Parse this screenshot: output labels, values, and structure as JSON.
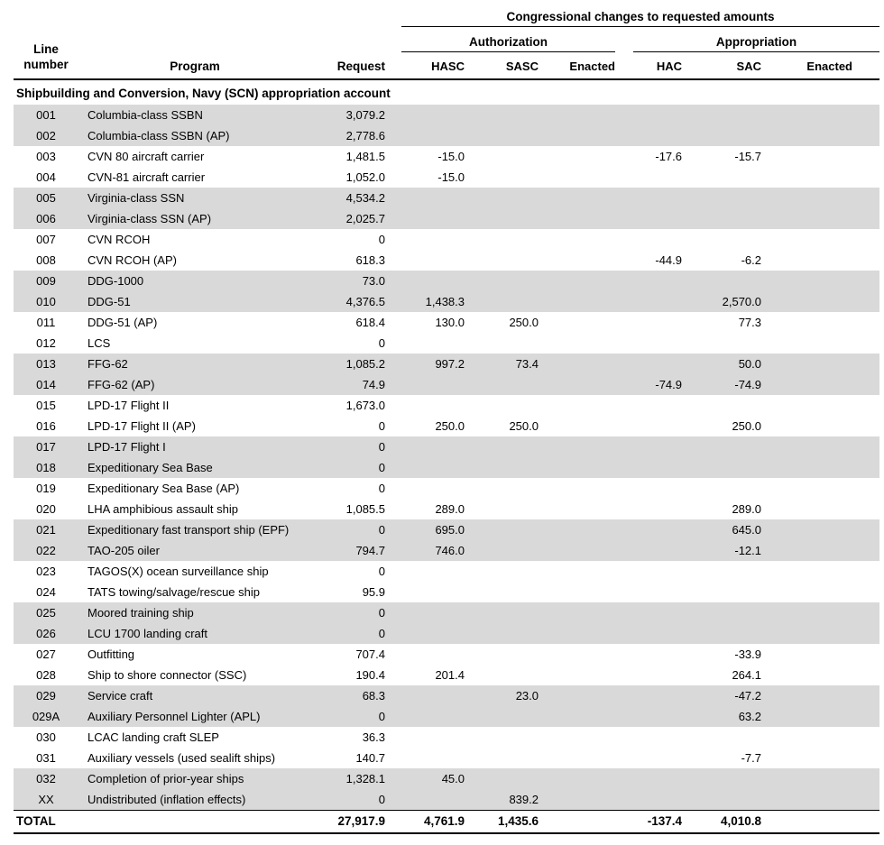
{
  "header": {
    "spanning_title": "Congressional changes to requested amounts",
    "group_authorization": "Authorization",
    "group_appropriation": "Appropriation",
    "col_line_top": "Line",
    "col_line_bottom": "number",
    "col_program": "Program",
    "col_request": "Request",
    "col_hasc": "HASC",
    "col_sasc": "SASC",
    "col_enacted_auth": "Enacted",
    "col_hac": "HAC",
    "col_sac": "SAC",
    "col_enacted_approp": "Enacted"
  },
  "section_title": "Shipbuilding and Conversion, Navy (SCN) appropriation account",
  "rows": [
    {
      "line": "001",
      "program": "Columbia-class SSBN",
      "request": "3,079.2",
      "hasc": "",
      "sasc": "",
      "enacted_auth": "",
      "hac": "",
      "sac": "",
      "enacted_approp": "",
      "shaded": true
    },
    {
      "line": "002",
      "program": "Columbia-class SSBN (AP)",
      "request": "2,778.6",
      "hasc": "",
      "sasc": "",
      "enacted_auth": "",
      "hac": "",
      "sac": "",
      "enacted_approp": "",
      "shaded": true
    },
    {
      "line": "003",
      "program": "CVN 80 aircraft carrier",
      "request": "1,481.5",
      "hasc": "-15.0",
      "sasc": "",
      "enacted_auth": "",
      "hac": "-17.6",
      "sac": "-15.7",
      "enacted_approp": "",
      "shaded": false
    },
    {
      "line": "004",
      "program": "CVN-81 aircraft carrier",
      "request": "1,052.0",
      "hasc": "-15.0",
      "sasc": "",
      "enacted_auth": "",
      "hac": "",
      "sac": "",
      "enacted_approp": "",
      "shaded": false
    },
    {
      "line": "005",
      "program": "Virginia-class SSN",
      "request": "4,534.2",
      "hasc": "",
      "sasc": "",
      "enacted_auth": "",
      "hac": "",
      "sac": "",
      "enacted_approp": "",
      "shaded": true
    },
    {
      "line": "006",
      "program": "Virginia-class SSN (AP)",
      "request": "2,025.7",
      "hasc": "",
      "sasc": "",
      "enacted_auth": "",
      "hac": "",
      "sac": "",
      "enacted_approp": "",
      "shaded": true
    },
    {
      "line": "007",
      "program": "CVN RCOH",
      "request": "0",
      "hasc": "",
      "sasc": "",
      "enacted_auth": "",
      "hac": "",
      "sac": "",
      "enacted_approp": "",
      "shaded": false
    },
    {
      "line": "008",
      "program": "CVN RCOH (AP)",
      "request": "618.3",
      "hasc": "",
      "sasc": "",
      "enacted_auth": "",
      "hac": "-44.9",
      "sac": "-6.2",
      "enacted_approp": "",
      "shaded": false
    },
    {
      "line": "009",
      "program": "DDG-1000",
      "request": "73.0",
      "hasc": "",
      "sasc": "",
      "enacted_auth": "",
      "hac": "",
      "sac": "",
      "enacted_approp": "",
      "shaded": true
    },
    {
      "line": "010",
      "program": "DDG-51",
      "request": "4,376.5",
      "hasc": "1,438.3",
      "sasc": "",
      "enacted_auth": "",
      "hac": "",
      "sac": "2,570.0",
      "enacted_approp": "",
      "shaded": true
    },
    {
      "line": "011",
      "program": "DDG-51 (AP)",
      "request": "618.4",
      "hasc": "130.0",
      "sasc": "250.0",
      "enacted_auth": "",
      "hac": "",
      "sac": "77.3",
      "enacted_approp": "",
      "shaded": false
    },
    {
      "line": "012",
      "program": "LCS",
      "request": "0",
      "hasc": "",
      "sasc": "",
      "enacted_auth": "",
      "hac": "",
      "sac": "",
      "enacted_approp": "",
      "shaded": false
    },
    {
      "line": "013",
      "program": "FFG-62",
      "request": "1,085.2",
      "hasc": "997.2",
      "sasc": "73.4",
      "enacted_auth": "",
      "hac": "",
      "sac": "50.0",
      "enacted_approp": "",
      "shaded": true
    },
    {
      "line": "014",
      "program": "FFG-62 (AP)",
      "request": "74.9",
      "hasc": "",
      "sasc": "",
      "enacted_auth": "",
      "hac": "-74.9",
      "sac": "-74.9",
      "enacted_approp": "",
      "shaded": true
    },
    {
      "line": "015",
      "program": "LPD-17 Flight II",
      "request": "1,673.0",
      "hasc": "",
      "sasc": "",
      "enacted_auth": "",
      "hac": "",
      "sac": "",
      "enacted_approp": "",
      "shaded": false
    },
    {
      "line": "016",
      "program": "LPD-17 Flight II (AP)",
      "request": "0",
      "hasc": "250.0",
      "sasc": "250.0",
      "enacted_auth": "",
      "hac": "",
      "sac": "250.0",
      "enacted_approp": "",
      "shaded": false
    },
    {
      "line": "017",
      "program": "LPD-17 Flight I",
      "request": "0",
      "hasc": "",
      "sasc": "",
      "enacted_auth": "",
      "hac": "",
      "sac": "",
      "enacted_approp": "",
      "shaded": true
    },
    {
      "line": "018",
      "program": "Expeditionary Sea Base",
      "request": "0",
      "hasc": "",
      "sasc": "",
      "enacted_auth": "",
      "hac": "",
      "sac": "",
      "enacted_approp": "",
      "shaded": true
    },
    {
      "line": "019",
      "program": "Expeditionary Sea Base (AP)",
      "request": "0",
      "hasc": "",
      "sasc": "",
      "enacted_auth": "",
      "hac": "",
      "sac": "",
      "enacted_approp": "",
      "shaded": false
    },
    {
      "line": "020",
      "program": "LHA amphibious assault ship",
      "request": "1,085.5",
      "hasc": "289.0",
      "sasc": "",
      "enacted_auth": "",
      "hac": "",
      "sac": "289.0",
      "enacted_approp": "",
      "shaded": false
    },
    {
      "line": "021",
      "program": "Expeditionary fast transport ship (EPF)",
      "request": "0",
      "hasc": "695.0",
      "sasc": "",
      "enacted_auth": "",
      "hac": "",
      "sac": "645.0",
      "enacted_approp": "",
      "shaded": true
    },
    {
      "line": "022",
      "program": "TAO-205 oiler",
      "request": "794.7",
      "hasc": "746.0",
      "sasc": "",
      "enacted_auth": "",
      "hac": "",
      "sac": "-12.1",
      "enacted_approp": "",
      "shaded": true
    },
    {
      "line": "023",
      "program": "TAGOS(X) ocean surveillance ship",
      "request": "0",
      "hasc": "",
      "sasc": "",
      "enacted_auth": "",
      "hac": "",
      "sac": "",
      "enacted_approp": "",
      "shaded": false
    },
    {
      "line": "024",
      "program": "TATS towing/salvage/rescue ship",
      "request": "95.9",
      "hasc": "",
      "sasc": "",
      "enacted_auth": "",
      "hac": "",
      "sac": "",
      "enacted_approp": "",
      "shaded": false
    },
    {
      "line": "025",
      "program": "Moored training ship",
      "request": "0",
      "hasc": "",
      "sasc": "",
      "enacted_auth": "",
      "hac": "",
      "sac": "",
      "enacted_approp": "",
      "shaded": true
    },
    {
      "line": "026",
      "program": "LCU 1700 landing craft",
      "request": "0",
      "hasc": "",
      "sasc": "",
      "enacted_auth": "",
      "hac": "",
      "sac": "",
      "enacted_approp": "",
      "shaded": true
    },
    {
      "line": "027",
      "program": "Outfitting",
      "request": "707.4",
      "hasc": "",
      "sasc": "",
      "enacted_auth": "",
      "hac": "",
      "sac": "-33.9",
      "enacted_approp": "",
      "shaded": false
    },
    {
      "line": "028",
      "program": "Ship to shore connector (SSC)",
      "request": "190.4",
      "hasc": "201.4",
      "sasc": "",
      "enacted_auth": "",
      "hac": "",
      "sac": "264.1",
      "enacted_approp": "",
      "shaded": false
    },
    {
      "line": "029",
      "program": "Service craft",
      "request": "68.3",
      "hasc": "",
      "sasc": "23.0",
      "enacted_auth": "",
      "hac": "",
      "sac": "-47.2",
      "enacted_approp": "",
      "shaded": true
    },
    {
      "line": "029A",
      "program": "Auxiliary Personnel Lighter (APL)",
      "request": "0",
      "hasc": "",
      "sasc": "",
      "enacted_auth": "",
      "hac": "",
      "sac": "63.2",
      "enacted_approp": "",
      "shaded": true
    },
    {
      "line": "030",
      "program": "LCAC landing craft SLEP",
      "request": "36.3",
      "hasc": "",
      "sasc": "",
      "enacted_auth": "",
      "hac": "",
      "sac": "",
      "enacted_approp": "",
      "shaded": false
    },
    {
      "line": "031",
      "program": "Auxiliary vessels (used sealift ships)",
      "request": "140.7",
      "hasc": "",
      "sasc": "",
      "enacted_auth": "",
      "hac": "",
      "sac": "-7.7",
      "enacted_approp": "",
      "shaded": false
    },
    {
      "line": "032",
      "program": "Completion of prior-year ships",
      "request": "1,328.1",
      "hasc": "45.0",
      "sasc": "",
      "enacted_auth": "",
      "hac": "",
      "sac": "",
      "enacted_approp": "",
      "shaded": true
    },
    {
      "line": "XX",
      "program": "Undistributed (inflation effects)",
      "request": "0",
      "hasc": "",
      "sasc": "839.2",
      "enacted_auth": "",
      "hac": "",
      "sac": "",
      "enacted_approp": "",
      "shaded": true
    }
  ],
  "total": {
    "label": "TOTAL",
    "request": "27,917.9",
    "hasc": "4,761.9",
    "sasc": "1,435.6",
    "enacted_auth": "",
    "hac": "-137.4",
    "sac": "4,010.8",
    "enacted_approp": ""
  },
  "colors": {
    "stripe": "#d9d9d9",
    "rule": "#000000",
    "text": "#000000",
    "background": "#ffffff"
  }
}
